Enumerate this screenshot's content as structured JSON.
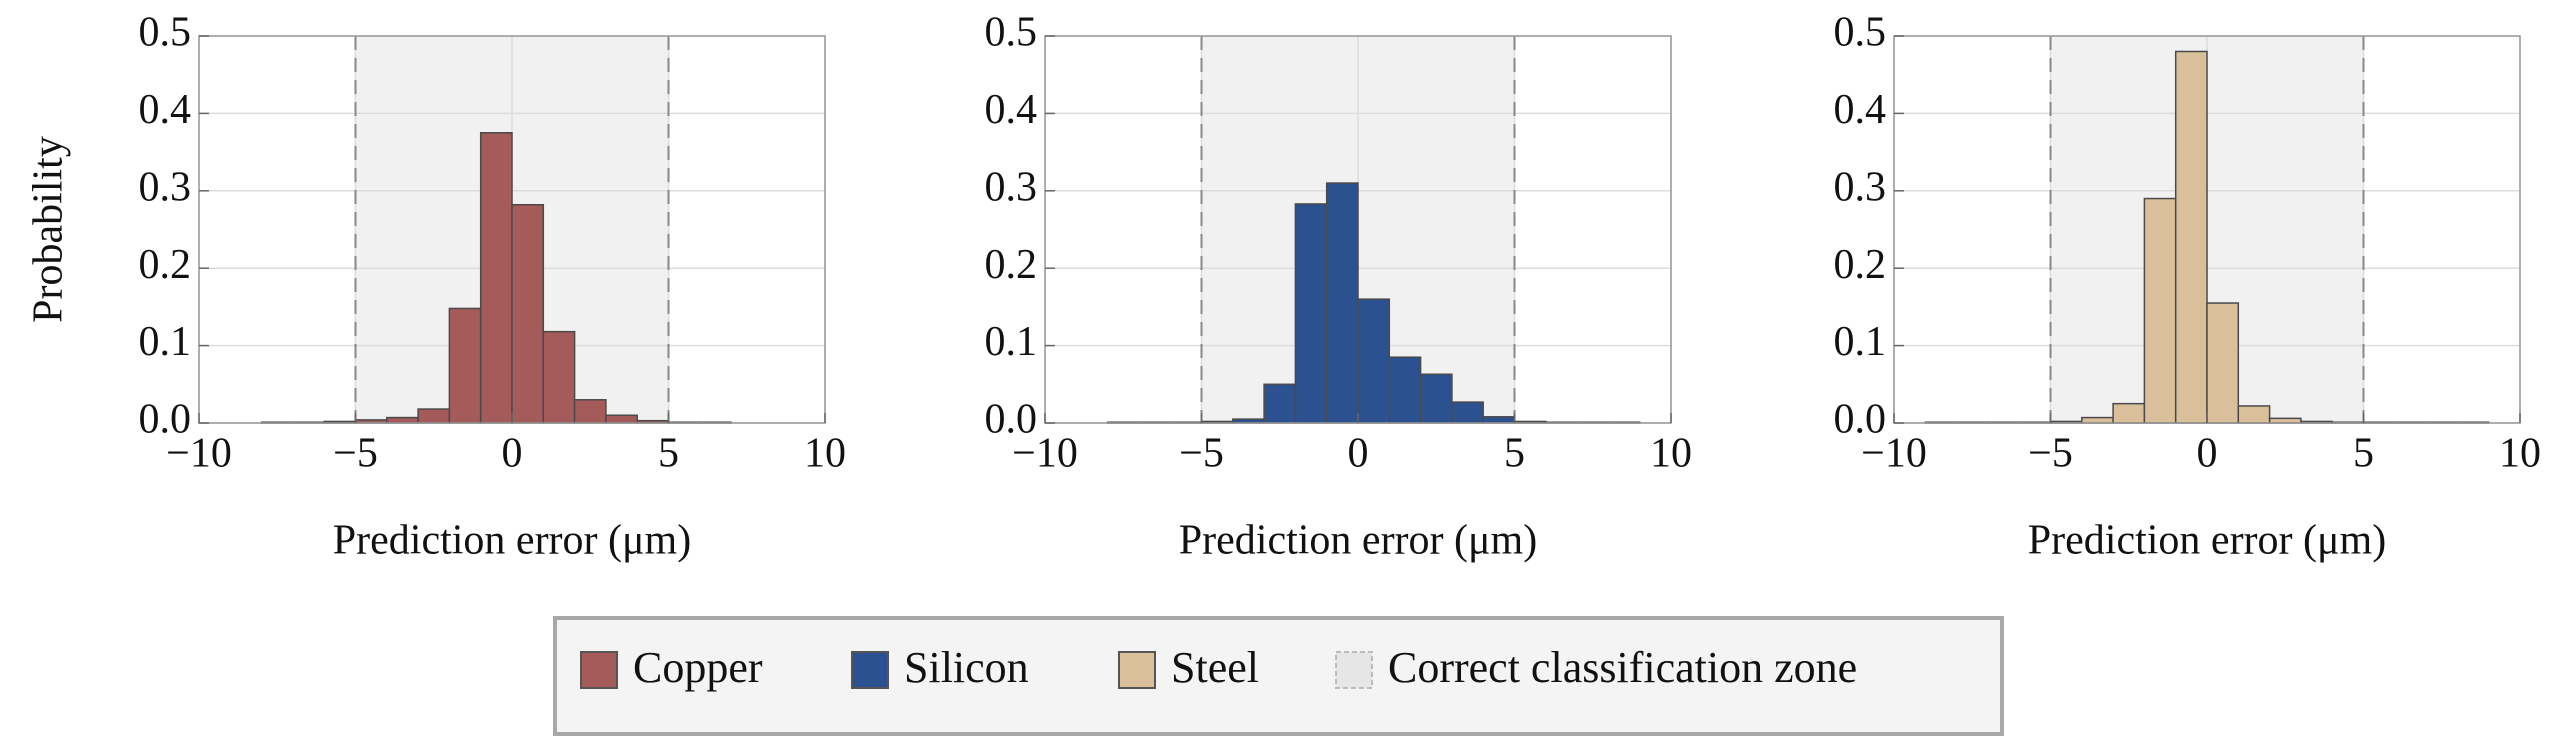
{
  "chart_data": [
    {
      "type": "histogram",
      "xlabel": "Prediction error (μm)",
      "ylabel": "Probability",
      "bins": [
        -8,
        -7,
        -6,
        -5,
        -4,
        -3,
        -2,
        -1,
        0,
        1,
        2,
        3,
        4,
        5,
        6,
        7
      ],
      "series": [
        {
          "name": "Copper",
          "color": "#a65b5b",
          "values": [
            0.001,
            0.001,
            0.002,
            0.004,
            0.007,
            0.018,
            0.148,
            0.375,
            0.282,
            0.118,
            0.03,
            0.01,
            0.003,
            0.001,
            0.001
          ]
        }
      ],
      "xlim": [
        -10,
        10
      ],
      "ylim": [
        0,
        0.5
      ],
      "xticks": [
        {
          "value": -10,
          "label": "−10"
        },
        {
          "value": -5,
          "label": "−5"
        },
        0,
        5,
        10
      ],
      "yticks": [
        {
          "value": 0,
          "label": "0.0"
        },
        0.1,
        0.2,
        0.3,
        0.4,
        0.5
      ],
      "grid": true
    },
    {
      "type": "histogram",
      "xlabel": "Prediction error (μm)",
      "bins": [
        -8,
        -7,
        -6,
        -5,
        -4,
        -3,
        -2,
        -1,
        0,
        1,
        2,
        3,
        4,
        5,
        6,
        7,
        8,
        9
      ],
      "series": [
        {
          "name": "Silicon",
          "color": "#2c5190",
          "values": [
            0.001,
            0.001,
            0.001,
            0.002,
            0.005,
            0.05,
            0.283,
            0.31,
            0.16,
            0.085,
            0.063,
            0.027,
            0.008,
            0.002,
            0.001,
            0.001,
            0.001
          ]
        }
      ],
      "xlim": [
        -10,
        10
      ],
      "ylim": [
        0,
        0.5
      ],
      "xticks": [
        {
          "value": -10,
          "label": "−10"
        },
        {
          "value": -5,
          "label": "−5"
        },
        0,
        5,
        10
      ],
      "yticks": [
        {
          "value": 0,
          "label": "0.0"
        },
        0.1,
        0.2,
        0.3,
        0.4,
        0.5
      ],
      "grid": true
    },
    {
      "type": "histogram",
      "xlabel": "Prediction error (μm)",
      "bins": [
        -9,
        -8,
        -7,
        -6,
        -5,
        -4,
        -3,
        -2,
        -1,
        0,
        1,
        2,
        3,
        4,
        5,
        6,
        7,
        8,
        9
      ],
      "series": [
        {
          "name": "Steel",
          "color": "#d9c09a",
          "values": [
            0.001,
            0.001,
            0.001,
            0.001,
            0.002,
            0.007,
            0.025,
            0.29,
            0.48,
            0.155,
            0.022,
            0.006,
            0.002,
            0.001,
            0.001,
            0.001,
            0.001,
            0.001
          ]
        }
      ],
      "xlim": [
        -10,
        10
      ],
      "ylim": [
        0,
        0.5
      ],
      "xticks": [
        {
          "value": -10,
          "label": "−10"
        },
        {
          "value": -5,
          "label": "−5"
        },
        0,
        5,
        10
      ],
      "yticks": [
        {
          "value": 0,
          "label": "0.0"
        },
        0.1,
        0.2,
        0.3,
        0.4,
        0.5
      ],
      "grid": true
    }
  ],
  "zone": {
    "range": [
      -5,
      5
    ],
    "label": "Correct classification zone",
    "color": "#f1f1f1"
  }
}
